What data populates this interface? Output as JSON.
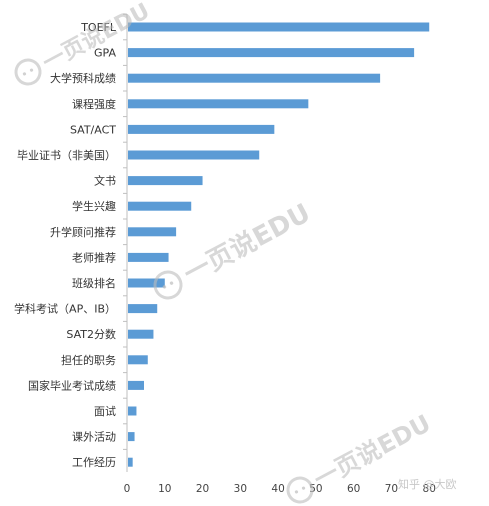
{
  "chart_data": {
    "type": "bar",
    "orientation": "horizontal",
    "categories": [
      "TOEFL",
      "GPA",
      "大学预科成绩",
      "课程强度",
      "SAT/ACT",
      "毕业证书（非美国）",
      "文书",
      "学生兴趣",
      "升学顾问推荐",
      "老师推荐",
      "班级排名",
      "学科考试（AP、IB）",
      "SAT2分数",
      "担任的职务",
      "国家毕业考试成绩",
      "面试",
      "课外活动",
      "工作经历"
    ],
    "values": [
      80,
      76,
      67,
      48,
      39,
      35,
      20,
      17,
      13,
      11,
      10,
      8,
      7,
      5.5,
      4.5,
      2.5,
      2,
      1.5
    ],
    "xlim": [
      0,
      90
    ],
    "xticks": [
      0,
      10,
      20,
      30,
      40,
      50,
      60,
      70,
      80
    ],
    "bar_color": "#5B9BD5",
    "grid": false,
    "title": "",
    "xlabel": "",
    "ylabel": ""
  },
  "watermarks": {
    "brand": "一页说EDU",
    "credit": "知乎 @大欧"
  }
}
